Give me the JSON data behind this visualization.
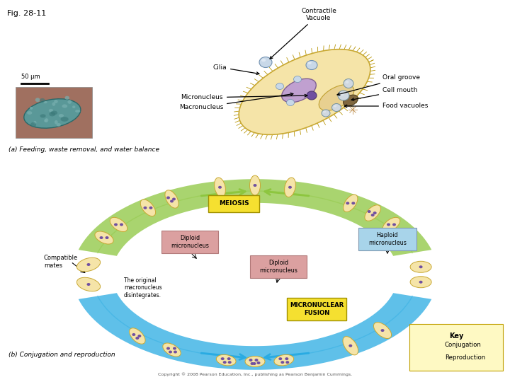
{
  "title": "Fig. 28-11",
  "background_color": "#ffffff",
  "scale_bar_text": "50 µm",
  "caption_a": "(a) Feeding, waste removal, and water balance",
  "caption_b": "(b) Conjugation and reproduction",
  "meiosis_label": "MEIOSIS",
  "haploid_label": "Haploid\nmicronucleus",
  "diploid_label1": "Diploid\nmicronucleus",
  "diploid_label2": "Diploid\nmicronucleus",
  "compatible_label": "Compatible\nmates",
  "original_label": "The original\nmacronucleus\ndisintegrates.",
  "fusion_label": "MICRONUCLEAR\nFUSION",
  "key_conjugation": "Conjugation",
  "key_reproduction": "Reproduction",
  "copyright": "Copyright © 2008 Pearson Education, Inc., publishing as Pearson Benjamin Cummings.",
  "conjugation_color": "#8dc63f",
  "reproduction_color": "#29abe2",
  "label_bg_meiosis": "#f5e030",
  "label_bg_fusion": "#f5e030",
  "label_bg_haploid": "#a8d4ea",
  "label_bg_diploid1": "#dba0a0",
  "label_bg_diploid2": "#dba0a0",
  "key_bg": "#fef9c3",
  "body_color": "#f5e4a8",
  "body_edge": "#c8a832",
  "cilia_color": "#b8960a",
  "nucleus_purple": "#7050a0",
  "macro_color": "#c0a0d0",
  "vacuole_color": "#c8d8e8",
  "food_vac_color": "#d0d8e0"
}
